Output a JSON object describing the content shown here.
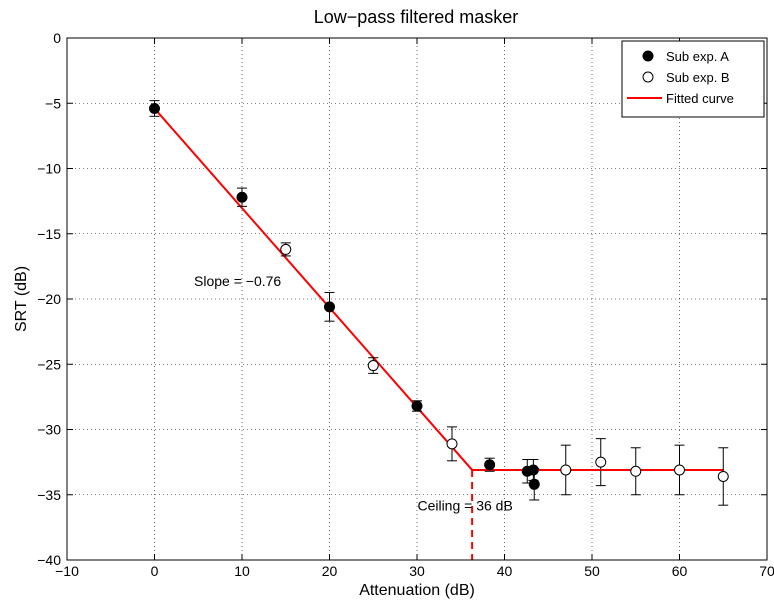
{
  "chart_data": {
    "type": "scatter",
    "title": "Low−pass filtered masker",
    "xlabel": "Attenuation (dB)",
    "ylabel": "SRT (dB)",
    "xlim": [
      -10,
      70
    ],
    "ylim": [
      -40,
      0
    ],
    "xticks": [
      -10,
      0,
      10,
      20,
      30,
      40,
      50,
      60,
      70
    ],
    "yticks": [
      0,
      -5,
      -10,
      -15,
      -20,
      -25,
      -30,
      -35,
      -40
    ],
    "xtick_labels": [
      "−10",
      "0",
      "10",
      "20",
      "30",
      "40",
      "50",
      "60",
      "70"
    ],
    "ytick_labels": [
      "0",
      "−5",
      "−10",
      "−15",
      "−20",
      "−25",
      "−30",
      "−35",
      "−40"
    ],
    "grid": true,
    "legend_position": "top-right",
    "series": [
      {
        "name": "Sub exp. A",
        "marker": "filled-circle",
        "points": [
          {
            "x": 0,
            "y": -5.4,
            "err": 0.6
          },
          {
            "x": 10,
            "y": -12.2,
            "err": 0.7
          },
          {
            "x": 20,
            "y": -20.6,
            "err": 1.1
          },
          {
            "x": 30,
            "y": -28.2,
            "err": 0.4
          },
          {
            "x": 38.3,
            "y": -32.7,
            "err": 0.5
          },
          {
            "x": 42.6,
            "y": -33.2,
            "err": 0.9
          },
          {
            "x": 43.3,
            "y": -33.1,
            "err": 0.8
          },
          {
            "x": 43.4,
            "y": -34.2,
            "err": 1.2
          }
        ]
      },
      {
        "name": "Sub exp. B",
        "marker": "open-circle",
        "points": [
          {
            "x": 15,
            "y": -16.2,
            "err": 0.5
          },
          {
            "x": 25,
            "y": -25.1,
            "err": 0.6
          },
          {
            "x": 34,
            "y": -31.1,
            "err": 1.3
          },
          {
            "x": 47,
            "y": -33.1,
            "err": 1.9
          },
          {
            "x": 51,
            "y": -32.5,
            "err": 1.8
          },
          {
            "x": 55,
            "y": -33.2,
            "err": 1.8
          },
          {
            "x": 60,
            "y": -33.1,
            "err": 1.9
          },
          {
            "x": 65,
            "y": -33.6,
            "err": 2.2
          }
        ]
      },
      {
        "name": "Fitted curve",
        "type": "line",
        "color": "#ff0000",
        "x": [
          0,
          36.3,
          65
        ],
        "y": [
          -5.4,
          -33.1,
          -33.1
        ]
      }
    ],
    "ceiling_line": {
      "x": 36.3,
      "y_from": -33.1,
      "y_to": -40,
      "color": "#ff0000",
      "style": "dashed"
    },
    "annotations": [
      {
        "text": "Slope = −0.76",
        "x": 9.5,
        "y": -19
      },
      {
        "text": "Ceiling = 36 dB",
        "x": 35.5,
        "y": -36.2
      }
    ]
  }
}
